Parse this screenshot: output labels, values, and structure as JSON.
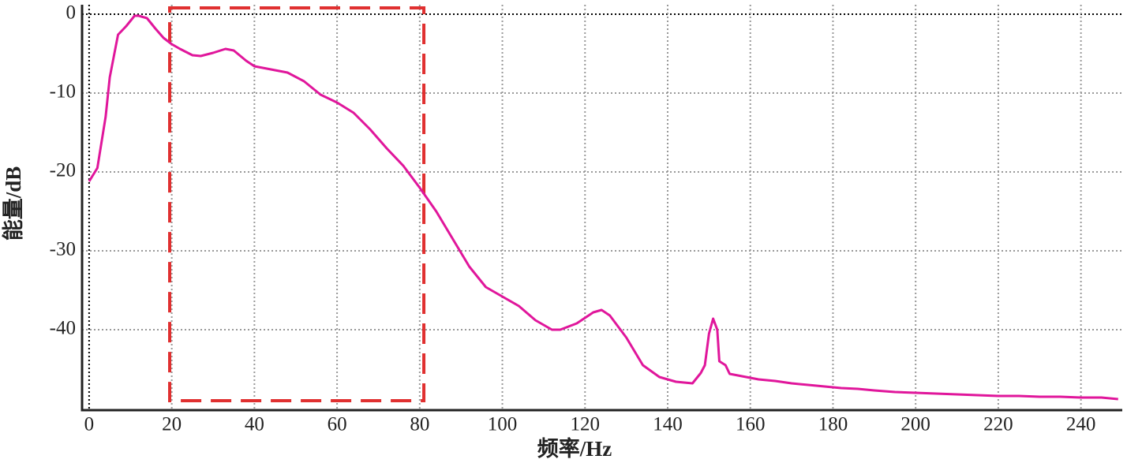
{
  "chart_data": {
    "type": "line",
    "x_label": "频率/Hz",
    "y_label": "能量/dB",
    "x": [
      0,
      2,
      4,
      5,
      7,
      9,
      11,
      12,
      14,
      16,
      18,
      20,
      22,
      25,
      27,
      30,
      33,
      35,
      38,
      40,
      44,
      48,
      52,
      56,
      60,
      64,
      68,
      72,
      76,
      80,
      84,
      88,
      92,
      96,
      100,
      104,
      108,
      112,
      114,
      118,
      122,
      124,
      126,
      130,
      134,
      138,
      142,
      146,
      148,
      149,
      150,
      151,
      152,
      152.5,
      154,
      155,
      158,
      162,
      166,
      170,
      174,
      178,
      182,
      186,
      190,
      195,
      200,
      205,
      210,
      215,
      220,
      225,
      230,
      235,
      240,
      245,
      249
    ],
    "series": [
      {
        "color": "#e0169b",
        "values": [
          -21.2,
          -19.5,
          -13,
          -8,
          -2.6,
          -1.5,
          -0.2,
          -0.2,
          -0.5,
          -1.8,
          -3,
          -3.8,
          -4.4,
          -5.2,
          -5.3,
          -4.9,
          -4.4,
          -4.6,
          -5.9,
          -6.6,
          -7,
          -7.4,
          -8.5,
          -10.2,
          -11.2,
          -12.5,
          -14.6,
          -17,
          -19.2,
          -22,
          -25,
          -28.5,
          -32,
          -34.6,
          -35.8,
          -37,
          -38.8,
          -40,
          -40,
          -39.2,
          -37.8,
          -37.5,
          -38.2,
          -41,
          -44.5,
          -46,
          -46.6,
          -46.8,
          -45.5,
          -44.5,
          -40.5,
          -38.6,
          -40,
          -44,
          -44.5,
          -45.6,
          -45.9,
          -46.3,
          -46.5,
          -46.8,
          -47,
          -47.2,
          -47.4,
          -47.5,
          -47.7,
          -47.9,
          -48,
          -48.1,
          -48.2,
          -48.3,
          -48.4,
          -48.4,
          -48.5,
          -48.5,
          -48.6,
          -48.6,
          -48.8
        ]
      }
    ],
    "xlim": [
      -1.7,
      250
    ],
    "ylim": [
      -50.2,
      1.8
    ],
    "xticks": [
      0,
      20,
      40,
      60,
      80,
      100,
      120,
      140,
      160,
      180,
      200,
      220,
      240
    ],
    "yticks": [
      0,
      -10,
      -20,
      -30,
      -40
    ],
    "grid": true,
    "highlight": {
      "x": [
        19.5,
        81
      ],
      "y": [
        -49,
        0.8
      ],
      "color": "#e03030"
    }
  }
}
